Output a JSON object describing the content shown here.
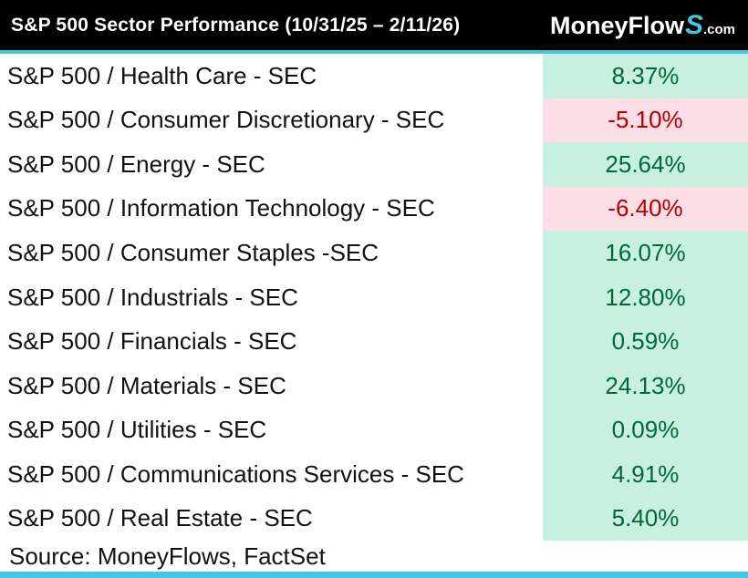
{
  "header": {
    "title": "S&P 500 Sector Performance (10/31/25 – 2/11/26)",
    "brand_main": "MoneyFlow",
    "brand_s": "S",
    "brand_suffix": ".com"
  },
  "table": {
    "rows": [
      {
        "label": "S&P 500 / Health Care - SEC",
        "value": "8.37%",
        "negative": false
      },
      {
        "label": "S&P 500 / Consumer Discretionary - SEC",
        "value": "-5.10%",
        "negative": true
      },
      {
        "label": "S&P 500 / Energy - SEC",
        "value": "25.64%",
        "negative": false
      },
      {
        "label": "S&P 500 / Information Technology - SEC",
        "value": "-6.40%",
        "negative": true
      },
      {
        "label": "S&P 500 / Consumer Staples -SEC",
        "value": "16.07%",
        "negative": false
      },
      {
        "label": "S&P 500 / Industrials - SEC",
        "value": "12.80%",
        "negative": false
      },
      {
        "label": "S&P 500 / Financials - SEC",
        "value": "0.59%",
        "negative": false
      },
      {
        "label": "S&P 500 / Materials - SEC",
        "value": "24.13%",
        "negative": false
      },
      {
        "label": "S&P 500 / Utilities - SEC",
        "value": "0.09%",
        "negative": false
      },
      {
        "label": "S&P 500 / Communications Services - SEC",
        "value": "4.91%",
        "negative": false
      },
      {
        "label": "S&P 500 / Real Estate - SEC",
        "value": "5.40%",
        "negative": false
      }
    ]
  },
  "footer": {
    "source": "Source: MoneyFlows, FactSet"
  },
  "colors": {
    "accent": "#45c6e2",
    "header_bg": "#000000",
    "positive_bg": "#c8f0e0",
    "positive_text": "#006837",
    "negative_bg": "#fbdee6",
    "negative_text": "#b30000"
  },
  "chart_data": {
    "type": "table",
    "title": "S&P 500 Sector Performance (10/31/25 – 2/11/26)",
    "categories": [
      "S&P 500 / Health Care - SEC",
      "S&P 500 / Consumer Discretionary - SEC",
      "S&P 500 / Energy - SEC",
      "S&P 500 / Information Technology - SEC",
      "S&P 500 / Consumer Staples -SEC",
      "S&P 500 / Industrials - SEC",
      "S&P 500 / Financials - SEC",
      "S&P 500 / Materials - SEC",
      "S&P 500 / Utilities - SEC",
      "S&P 500 / Communications Services - SEC",
      "S&P 500 / Real Estate - SEC"
    ],
    "values": [
      8.37,
      -5.1,
      25.64,
      -6.4,
      16.07,
      12.8,
      0.59,
      24.13,
      0.09,
      4.91,
      5.4
    ],
    "value_format": "percent",
    "source": "Source: MoneyFlows, FactSet"
  }
}
